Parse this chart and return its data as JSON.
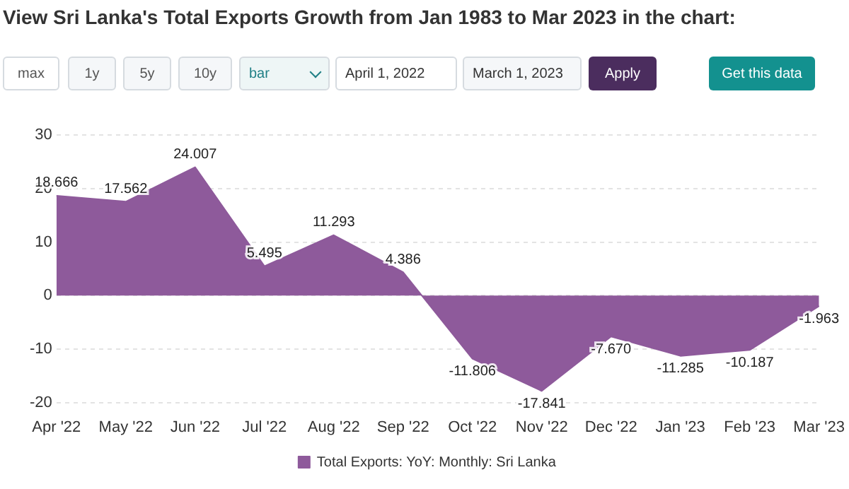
{
  "chart_data": {
    "type": "area",
    "title": "View Sri Lanka's Total Exports Growth from Jan 1983 to Mar 2023 in the chart:",
    "categories": [
      "Apr '22",
      "May '22",
      "Jun '22",
      "Jul '22",
      "Aug '22",
      "Sep '22",
      "Oct '22",
      "Nov '22",
      "Dec '22",
      "Jan '23",
      "Feb '23",
      "Mar '23"
    ],
    "series": [
      {
        "name": "Total Exports: YoY: Monthly: Sri Lanka",
        "color": "#8e5a9b",
        "values": [
          18.666,
          17.562,
          24.007,
          5.495,
          11.293,
          4.386,
          -11.806,
          -17.841,
          -7.67,
          -11.285,
          -10.187,
          -1.963
        ],
        "value_labels": [
          "18.666",
          "17.562",
          "24.007",
          "5.495",
          "11.293",
          "4.386",
          "-11.806",
          "-17.841",
          "-7.670",
          "-11.285",
          "-10.187",
          "-1.963"
        ]
      }
    ],
    "ylim": [
      -20,
      30
    ],
    "yticks": [
      -20,
      -10,
      0,
      10,
      20,
      30
    ],
    "grid": "y",
    "legend": "bottom",
    "annotations": [
      "max",
      "1y",
      "5y",
      "10y",
      "bar",
      "April 1, 2022",
      "March 1, 2023",
      "Apply",
      "Get this data"
    ]
  }
}
